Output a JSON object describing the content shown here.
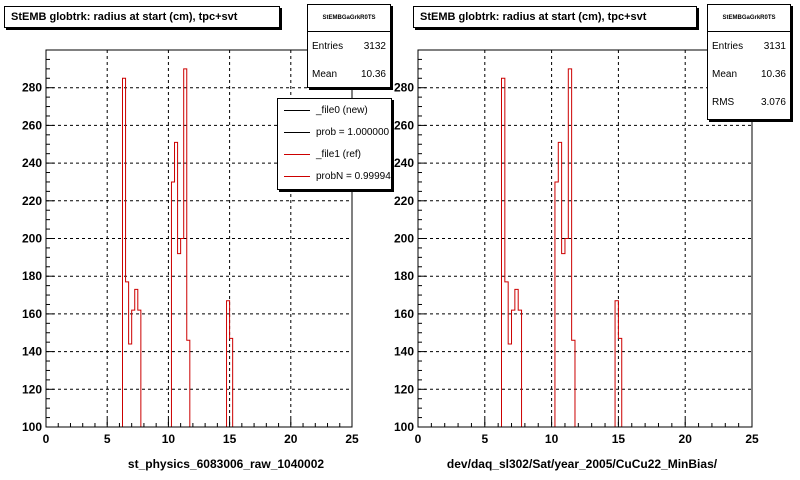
{
  "colors": {
    "current": "#000000",
    "reference": "#cc0000",
    "grid": "#000000",
    "background": "#ffffff"
  },
  "chart_data": [
    {
      "type": "histogram",
      "title": "StEMB globtrk: radius at start (cm), tpc+svt",
      "xlabel": "st_physics_6083006_raw_1040002",
      "ylabel": "",
      "xlim": [
        0,
        25
      ],
      "ylim": [
        100,
        300
      ],
      "xticks": [
        0,
        5,
        10,
        15,
        20,
        25
      ],
      "yticks": [
        100,
        120,
        140,
        160,
        180,
        200,
        220,
        240,
        260,
        280
      ],
      "grid": true,
      "stats": {
        "title": "StEMBGaGrkR0TS",
        "rows": [
          {
            "label": "Entries",
            "value": "3132"
          },
          {
            "label": "Mean",
            "value": "10.36"
          }
        ]
      },
      "legend": {
        "placement": "top-right",
        "entries": [
          {
            "label": "_file0 (new)",
            "color": "#000000"
          },
          {
            "label": "prob = 1.000000",
            "color": "#000000"
          },
          {
            "label": "_file1 (ref)",
            "color": "#cc0000"
          },
          {
            "label": "probN = 0.99994",
            "color": "#cc0000"
          }
        ]
      },
      "series": [
        {
          "name": "_file1 (ref)",
          "color": "#cc0000",
          "bin_width": 0.25,
          "bins": [
            [
              6.25,
              285
            ],
            [
              6.5,
              177
            ],
            [
              6.75,
              144
            ],
            [
              7.0,
              162
            ],
            [
              7.25,
              173
            ],
            [
              7.5,
              162
            ],
            [
              10.25,
              230
            ],
            [
              10.5,
              251
            ],
            [
              10.75,
              192
            ],
            [
              11.0,
              200
            ],
            [
              11.25,
              290
            ],
            [
              11.5,
              146
            ],
            [
              14.75,
              167
            ],
            [
              15.0,
              147
            ]
          ]
        }
      ]
    },
    {
      "type": "histogram",
      "title": "StEMB globtrk: radius at start (cm), tpc+svt",
      "xlabel": "dev/daq_sl302/Sat/year_2005/CuCu22_MinBias/",
      "ylabel": "",
      "xlim": [
        0,
        25
      ],
      "ylim": [
        100,
        300
      ],
      "xticks": [
        0,
        5,
        10,
        15,
        20,
        25
      ],
      "yticks": [
        100,
        120,
        140,
        160,
        180,
        200,
        220,
        240,
        260,
        280
      ],
      "grid": true,
      "stats": {
        "title": "StEMBGaGrkR0TS",
        "rows": [
          {
            "label": "Entries",
            "value": "3131"
          },
          {
            "label": "Mean",
            "value": "10.36"
          },
          {
            "label": "RMS",
            "value": "3.076"
          }
        ]
      },
      "series": [
        {
          "name": "",
          "color": "#cc0000",
          "bin_width": 0.25,
          "bins": [
            [
              6.25,
              285
            ],
            [
              6.5,
              177
            ],
            [
              6.75,
              144
            ],
            [
              7.0,
              162
            ],
            [
              7.25,
              173
            ],
            [
              7.5,
              162
            ],
            [
              10.25,
              230
            ],
            [
              10.5,
              251
            ],
            [
              10.75,
              192
            ],
            [
              11.0,
              200
            ],
            [
              11.25,
              290
            ],
            [
              11.5,
              146
            ],
            [
              14.75,
              167
            ],
            [
              15.0,
              147
            ]
          ]
        }
      ]
    }
  ]
}
